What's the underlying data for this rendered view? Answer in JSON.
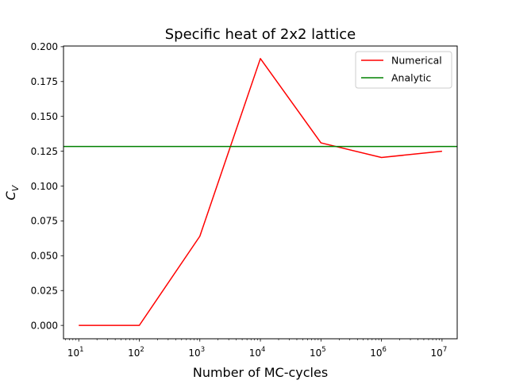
{
  "chart_data": {
    "type": "line",
    "title": "Specific heat of 2x2 lattice",
    "xlabel": "Number of MC-cycles",
    "ylabel": "C",
    "ylabel_sub": "V",
    "xscale": "log",
    "xlim": [
      5.6,
      17800000
    ],
    "ylim": [
      -0.0096,
      0.2005
    ],
    "xticks": [
      {
        "value": 10,
        "base": "10",
        "exp": "1"
      },
      {
        "value": 100,
        "base": "10",
        "exp": "2"
      },
      {
        "value": 1000,
        "base": "10",
        "exp": "3"
      },
      {
        "value": 10000,
        "base": "10",
        "exp": "4"
      },
      {
        "value": 100000,
        "base": "10",
        "exp": "5"
      },
      {
        "value": 1000000,
        "base": "10",
        "exp": "6"
      },
      {
        "value": 10000000,
        "base": "10",
        "exp": "7"
      }
    ],
    "yticks": [
      {
        "value": 0.0,
        "label": "0.000"
      },
      {
        "value": 0.025,
        "label": "0.025"
      },
      {
        "value": 0.05,
        "label": "0.050"
      },
      {
        "value": 0.075,
        "label": "0.075"
      },
      {
        "value": 0.1,
        "label": "0.100"
      },
      {
        "value": 0.125,
        "label": "0.125"
      },
      {
        "value": 0.15,
        "label": "0.150"
      },
      {
        "value": 0.175,
        "label": "0.175"
      },
      {
        "value": 0.2,
        "label": "0.200"
      }
    ],
    "grid": false,
    "legend_position": "top-right",
    "series": [
      {
        "name": "Numerical",
        "color": "#ff0000",
        "x": [
          10,
          100,
          1000,
          10000,
          100000,
          1000000,
          10000000
        ],
        "y": [
          0.0,
          0.0,
          0.064,
          0.1915,
          0.131,
          0.1205,
          0.125
        ]
      },
      {
        "name": "Analytic",
        "color": "#008000",
        "kind": "hline",
        "y": 0.1284
      }
    ]
  }
}
